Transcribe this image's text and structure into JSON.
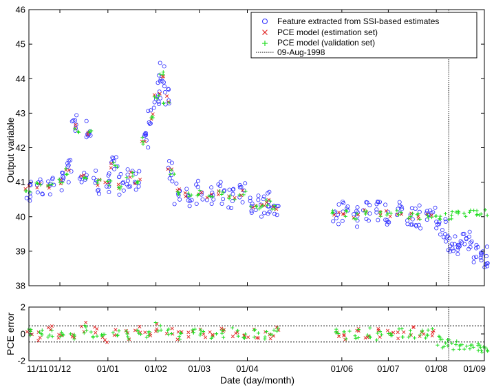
{
  "chart_data": [
    {
      "type": "scatter",
      "xlabel": "",
      "ylabel": "Output variable",
      "ylim": [
        38,
        46
      ],
      "yticks": [
        "38",
        "39",
        "40",
        "41",
        "42",
        "43",
        "44",
        "45",
        "46"
      ],
      "x_axis_type": "date",
      "xlim": [
        "1997-11-11",
        "1998-09-01"
      ],
      "grid": "off",
      "legend": {
        "placement": "top-right",
        "entries": [
          {
            "label": "Feature extracted from SSI-based estimates",
            "marker": "circle",
            "color": "#2a2aff"
          },
          {
            "label": "PCE model (estimation set)",
            "marker": "x",
            "color": "#e02020"
          },
          {
            "label": "PCE model (validation set)",
            "marker": "plus",
            "color": "#22dd22"
          },
          {
            "label": "09-Aug-1998",
            "marker": "dotted-line",
            "color": "#000000"
          }
        ]
      },
      "vertical_line": {
        "date": "1998-08-09",
        "label": "09-Aug-1998"
      },
      "series": [
        {
          "name": "Feature extracted from SSI-based estimates",
          "style": "circle",
          "color": "#2a2aff",
          "x": [
            "1997-11-11",
            "1997-11-18",
            "1997-11-25",
            "1997-12-02",
            "1997-12-07",
            "1997-12-11",
            "1997-12-16",
            "1997-12-20",
            "1997-12-25",
            "1998-01-01",
            "1998-01-05",
            "1998-01-10",
            "1998-01-15",
            "1998-01-20",
            "1998-01-25",
            "1998-01-29",
            "1998-02-02",
            "1998-02-05",
            "1998-02-08",
            "1998-02-11",
            "1998-02-15",
            "1998-02-22",
            "1998-03-01",
            "1998-03-08",
            "1998-03-15",
            "1998-03-22",
            "1998-03-29",
            "1998-04-05",
            "1998-04-10",
            "1998-04-15",
            "1998-04-19",
            "1998-05-28",
            "1998-06-03",
            "1998-06-10",
            "1998-06-17",
            "1998-06-24",
            "1998-07-01",
            "1998-07-08",
            "1998-07-15",
            "1998-07-20",
            "1998-07-27",
            "1998-08-01",
            "1998-08-05",
            "1998-08-09",
            "1998-08-13",
            "1998-08-17",
            "1998-08-21",
            "1998-08-25",
            "1998-08-29",
            "1998-09-01"
          ],
          "y": [
            40.8,
            40.9,
            40.9,
            41.0,
            41.3,
            42.8,
            41.2,
            42.6,
            41.0,
            41.0,
            41.6,
            40.9,
            41.2,
            41.0,
            42.3,
            43.0,
            43.6,
            44.2,
            43.5,
            41.3,
            40.7,
            40.6,
            40.7,
            40.6,
            40.7,
            40.5,
            40.7,
            40.3,
            40.3,
            40.4,
            40.3,
            40.1,
            40.1,
            40.0,
            40.1,
            40.1,
            40.1,
            40.1,
            40.0,
            40.0,
            40.0,
            40.0,
            39.6,
            39.3,
            39.2,
            39.2,
            39.3,
            39.0,
            38.8,
            38.8
          ]
        },
        {
          "name": "PCE model (estimation set)",
          "style": "x",
          "color": "#e02020",
          "x": [
            "1997-11-11",
            "1997-11-18",
            "1997-11-25",
            "1997-12-02",
            "1997-12-07",
            "1997-12-11",
            "1997-12-16",
            "1997-12-20",
            "1997-12-25",
            "1998-01-01",
            "1998-01-05",
            "1998-01-10",
            "1998-01-15",
            "1998-01-20",
            "1998-01-25",
            "1998-01-29",
            "1998-02-02",
            "1998-02-05",
            "1998-02-08",
            "1998-02-11",
            "1998-02-15",
            "1998-02-22",
            "1998-03-01",
            "1998-03-08",
            "1998-03-15",
            "1998-03-22",
            "1998-03-29",
            "1998-04-05",
            "1998-04-10",
            "1998-04-15",
            "1998-04-19",
            "1998-05-28",
            "1998-06-03",
            "1998-06-10",
            "1998-06-17",
            "1998-06-24",
            "1998-07-01",
            "1998-07-08",
            "1998-07-15",
            "1998-07-20",
            "1998-07-27"
          ],
          "y": [
            40.8,
            40.9,
            40.9,
            41.0,
            41.3,
            42.6,
            41.2,
            42.4,
            41.0,
            41.0,
            41.5,
            40.9,
            41.2,
            41.0,
            42.2,
            42.9,
            43.5,
            44.1,
            43.4,
            41.3,
            40.7,
            40.6,
            40.7,
            40.6,
            40.7,
            40.5,
            40.7,
            40.3,
            40.3,
            40.4,
            40.3,
            40.1,
            40.1,
            40.0,
            40.1,
            40.1,
            40.1,
            40.1,
            40.0,
            40.0,
            40.0
          ]
        },
        {
          "name": "PCE model (validation set)",
          "style": "plus",
          "color": "#22dd22",
          "x": [
            "1997-11-11",
            "1997-11-18",
            "1997-11-25",
            "1997-12-02",
            "1997-12-07",
            "1997-12-11",
            "1997-12-16",
            "1997-12-20",
            "1997-12-25",
            "1998-01-01",
            "1998-01-05",
            "1998-01-10",
            "1998-01-15",
            "1998-01-20",
            "1998-01-25",
            "1998-01-29",
            "1998-02-02",
            "1998-02-05",
            "1998-02-08",
            "1998-02-11",
            "1998-02-15",
            "1998-02-22",
            "1998-03-01",
            "1998-03-08",
            "1998-03-15",
            "1998-03-22",
            "1998-03-29",
            "1998-04-05",
            "1998-04-10",
            "1998-04-15",
            "1998-04-19",
            "1998-05-28",
            "1998-06-03",
            "1998-06-10",
            "1998-06-17",
            "1998-06-24",
            "1998-07-01",
            "1998-07-08",
            "1998-07-15",
            "1998-07-20",
            "1998-07-27",
            "1998-08-01",
            "1998-08-05",
            "1998-08-09",
            "1998-08-13",
            "1998-08-17",
            "1998-08-21",
            "1998-08-25",
            "1998-08-29",
            "1998-09-01"
          ],
          "y": [
            40.8,
            40.9,
            40.9,
            41.0,
            41.3,
            42.5,
            41.2,
            42.4,
            41.0,
            41.0,
            41.5,
            40.9,
            41.2,
            41.0,
            42.2,
            42.9,
            43.5,
            44.1,
            43.3,
            41.3,
            40.7,
            40.6,
            40.7,
            40.6,
            40.7,
            40.5,
            40.7,
            40.3,
            40.3,
            40.4,
            40.3,
            40.1,
            40.1,
            40.0,
            40.1,
            40.1,
            40.1,
            40.1,
            40.0,
            40.0,
            40.0,
            40.0,
            40.0,
            40.0,
            40.1,
            40.1,
            40.1,
            40.1,
            40.1,
            40.1
          ]
        }
      ]
    },
    {
      "type": "scatter",
      "xlabel": "Date (day/month)",
      "ylabel": "PCE error",
      "ylim": [
        -2,
        2
      ],
      "yticks": [
        "-2",
        "0",
        "2"
      ],
      "x_axis_type": "date",
      "xlim": [
        "1997-11-11",
        "1998-09-01"
      ],
      "xticks": [
        "11/11",
        "01/12",
        "01/01",
        "01/02",
        "01/03",
        "01/04",
        "01/06",
        "01/07",
        "01/08",
        "01/09"
      ],
      "xtick_dates": [
        "1997-11-11",
        "1997-12-01",
        "1998-01-01",
        "1998-02-01",
        "1998-03-01",
        "1998-04-01",
        "1998-06-01",
        "1998-07-01",
        "1998-08-01",
        "1998-09-01"
      ],
      "horizontal_lines": [
        0.6,
        -0.6
      ],
      "vertical_line": {
        "date": "1998-08-09"
      },
      "series": [
        {
          "name": "PCE model (estimation set)",
          "style": "x",
          "color": "#e02020",
          "x": [
            "1997-11-11",
            "1997-11-18",
            "1997-11-25",
            "1997-12-02",
            "1997-12-09",
            "1997-12-16",
            "1997-12-23",
            "1997-12-30",
            "1998-01-06",
            "1998-01-13",
            "1998-01-20",
            "1998-01-27",
            "1998-02-03",
            "1998-02-10",
            "1998-02-17",
            "1998-02-24",
            "1998-03-03",
            "1998-03-10",
            "1998-03-17",
            "1998-03-24",
            "1998-03-31",
            "1998-04-07",
            "1998-04-14",
            "1998-04-19",
            "1998-05-28",
            "1998-06-04",
            "1998-06-11",
            "1998-06-18",
            "1998-06-25",
            "1998-07-02",
            "1998-07-09",
            "1998-07-16",
            "1998-07-23",
            "1998-07-28"
          ],
          "y": [
            0.1,
            -0.2,
            0.3,
            0.0,
            -0.4,
            0.5,
            0.2,
            -0.3,
            0.1,
            -0.1,
            0.3,
            -0.2,
            0.4,
            0.2,
            -0.2,
            0.1,
            0.0,
            -0.1,
            0.2,
            -0.2,
            0.1,
            0.0,
            -0.1,
            0.2,
            0.0,
            -0.1,
            0.1,
            -0.2,
            0.1,
            0.0,
            -0.1,
            0.2,
            -0.1,
            0.0
          ]
        },
        {
          "name": "PCE model (validation set)",
          "style": "plus",
          "color": "#22dd22",
          "x": [
            "1997-11-11",
            "1997-11-18",
            "1997-11-25",
            "1997-12-02",
            "1997-12-09",
            "1997-12-16",
            "1997-12-23",
            "1997-12-30",
            "1998-01-06",
            "1998-01-13",
            "1998-01-20",
            "1998-01-27",
            "1998-02-03",
            "1998-02-10",
            "1998-02-17",
            "1998-02-24",
            "1998-03-03",
            "1998-03-10",
            "1998-03-17",
            "1998-03-24",
            "1998-03-31",
            "1998-04-07",
            "1998-04-14",
            "1998-04-19",
            "1998-05-28",
            "1998-06-04",
            "1998-06-11",
            "1998-06-18",
            "1998-06-25",
            "1998-07-02",
            "1998-07-09",
            "1998-07-16",
            "1998-07-23",
            "1998-07-28",
            "1998-08-02",
            "1998-08-06",
            "1998-08-10",
            "1998-08-14",
            "1998-08-18",
            "1998-08-22",
            "1998-08-26",
            "1998-08-30",
            "1998-09-01"
          ],
          "y": [
            0.0,
            0.2,
            -0.1,
            0.1,
            -0.2,
            0.3,
            0.0,
            -0.2,
            0.1,
            -0.1,
            0.2,
            0.0,
            0.5,
            0.1,
            -0.1,
            0.0,
            0.1,
            -0.1,
            0.0,
            0.1,
            -0.1,
            0.0,
            -0.1,
            0.1,
            0.0,
            -0.1,
            0.0,
            0.1,
            -0.1,
            0.0,
            0.1,
            -0.1,
            0.0,
            0.1,
            -0.5,
            -0.7,
            -0.8,
            -0.9,
            -0.9,
            -0.8,
            -1.0,
            -1.1,
            -1.2
          ]
        }
      ]
    }
  ]
}
